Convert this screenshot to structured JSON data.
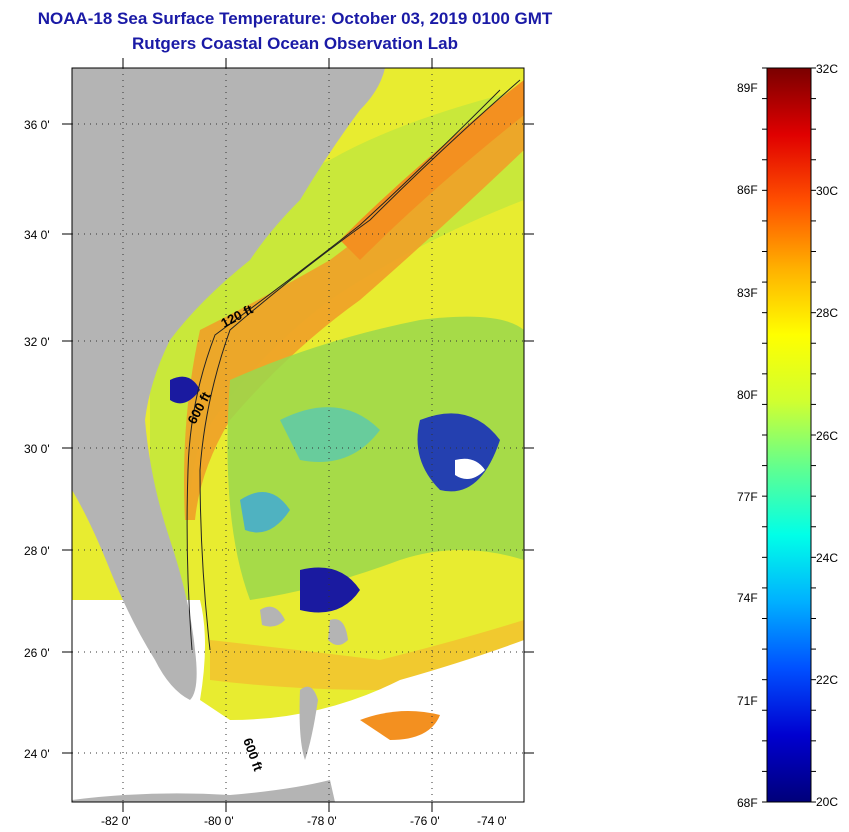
{
  "header": {
    "title_line_1": "NOAA-18 Sea Surface Temperature:  October 03, 2019 0100 GMT",
    "title_line_2": "Rutgers Coastal Ocean Observation Lab"
  },
  "map": {
    "lat_labels": [
      "36 0'",
      "34 0'",
      "32 0'",
      "30 0'",
      "28 0'",
      "26 0'",
      "24 0'"
    ],
    "lon_labels": [
      "-82 0'",
      "-80 0'",
      "-78 0'",
      "-76 0'",
      "-74 0'"
    ],
    "contour_labels": [
      "120 ft",
      "600 ft",
      "600 ft"
    ],
    "colors": {
      "land": "#b4b4b4",
      "no_data": "#ffffff",
      "coldest": "#1a1aa0",
      "cool": "#2ab0e8",
      "mid": "#7fd84a",
      "warm": "#f2ee28",
      "hot": "#f59a1c"
    }
  },
  "colorbar": {
    "fahrenheit_labels": [
      "89F",
      "86F",
      "83F",
      "80F",
      "77F",
      "74F",
      "71F",
      "68F"
    ],
    "celsius_labels": [
      "32C",
      "30C",
      "28C",
      "26C",
      "24C",
      "22C",
      "20C"
    ],
    "range_celsius": [
      20,
      32
    ],
    "palette": [
      "#00007a",
      "#0000d0",
      "#0050ff",
      "#00b0ff",
      "#00ffe8",
      "#60ff90",
      "#d0ff30",
      "#ffff00",
      "#ffb000",
      "#ff5000",
      "#e00000",
      "#7a0000"
    ]
  }
}
